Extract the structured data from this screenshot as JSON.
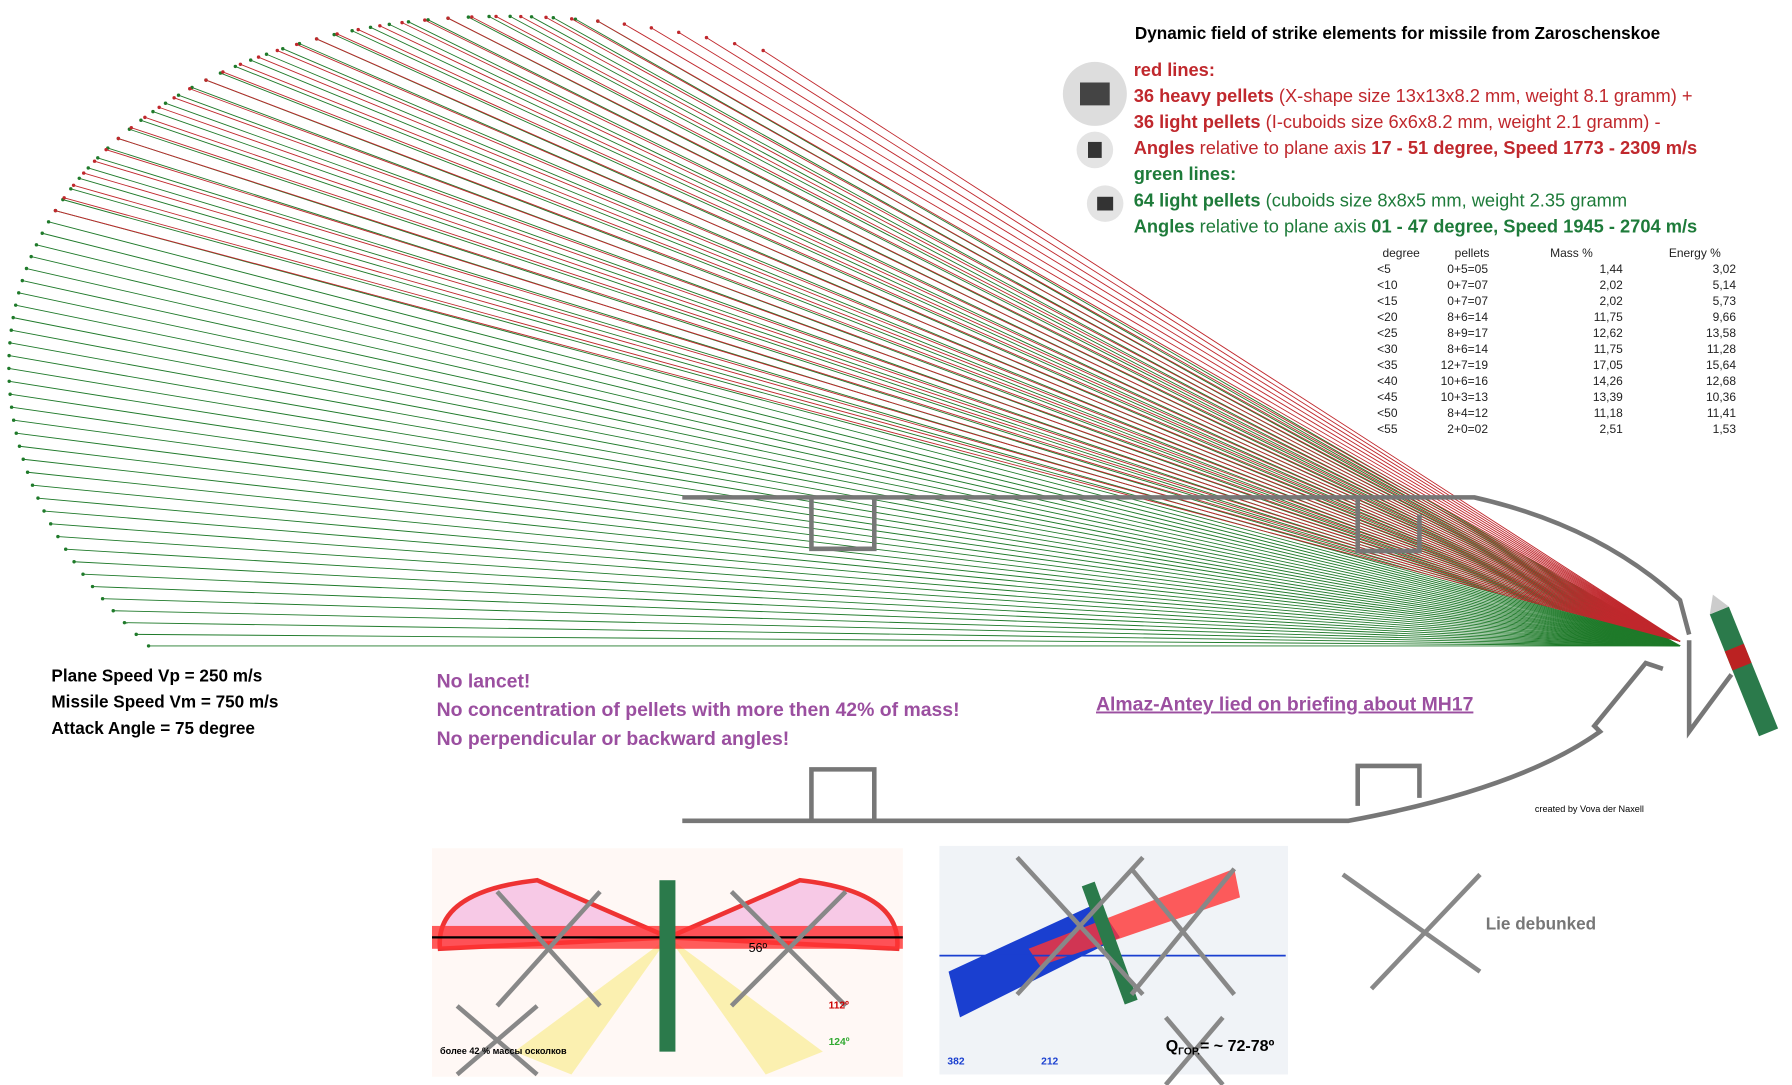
{
  "title": "Dynamic field of strike elements for missile from Zaroschenskoe",
  "legend": {
    "red_heading": "red lines:",
    "red_lines": [
      [
        "36 heavy pellets",
        " (X-shape size 13x13x8.2 mm, weight 8.1 gramm) +"
      ],
      [
        "36 light pellets",
        " (I-cuboids size 6x6x8.2 mm, weight 2.1 gramm) -"
      ],
      [
        "Angles",
        " relative to plane axis ",
        "17 - 51 degree, Speed 1773 - 2309 m/s"
      ]
    ],
    "green_heading": "green lines:",
    "green_lines": [
      [
        "64 light pellets",
        " (cuboids size 8x8x5 mm, weight 2.35 gramm"
      ],
      [
        "Angles",
        " relative to plane axis ",
        "01 - 47 degree, Speed 1945 - 2704 m/s"
      ]
    ]
  },
  "table": {
    "headers": [
      "degree",
      "pellets",
      "Mass %",
      "Energy %"
    ],
    "rows": [
      [
        "<5",
        "0+5=05",
        "1,44",
        "3,02"
      ],
      [
        "<10",
        "0+7=07",
        "2,02",
        "5,14"
      ],
      [
        "<15",
        "0+7=07",
        "2,02",
        "5,73"
      ],
      [
        "<20",
        "8+6=14",
        "11,75",
        "9,66"
      ],
      [
        "<25",
        "8+9=17",
        "12,62",
        "13,58"
      ],
      [
        "<30",
        "8+6=14",
        "11,75",
        "11,28"
      ],
      [
        "<35",
        "12+7=19",
        "17,05",
        "15,64"
      ],
      [
        "<40",
        "10+6=16",
        "14,26",
        "12,68"
      ],
      [
        "<45",
        "10+3=13",
        "13,39",
        "10,36"
      ],
      [
        "<50",
        "8+4=12",
        "11,18",
        "11,41"
      ],
      [
        "<55",
        "2+0=02",
        "2,51",
        "1,53"
      ]
    ]
  },
  "left_notes": [
    "Plane Speed Vp = 250 m/s",
    "Missile Speed Vm = 750 m/s",
    "Attack Angle = 75 degree"
  ],
  "center_notes": [
    "No lancet!",
    "No concentration of pellets with more then 42% of mass!",
    "No perpendicular or backward angles!"
  ],
  "link": "Almaz-Antey lied on briefing about MH17",
  "credit": "created by Vova der Naxell",
  "figure_labels": {
    "left": [
      "более 42 % массы осколков",
      "56º",
      "112º",
      "124º"
    ],
    "center": [
      "382",
      "212",
      "Q",
      "ГОР.",
      "= ~ 72-78º"
    ],
    "right": "Lie debunked"
  }
}
